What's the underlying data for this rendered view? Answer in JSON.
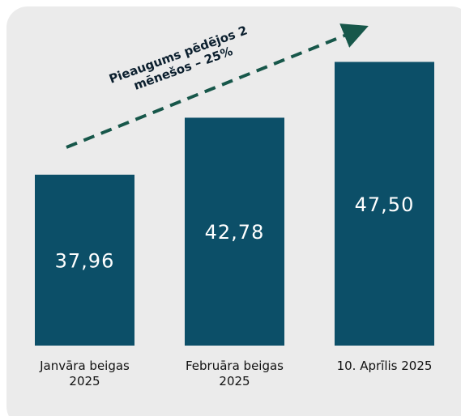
{
  "chart_data": {
    "type": "bar",
    "categories": [
      "Janvāra beigas 2025",
      "Februāra beigas 2025",
      "10. Aprīlis 2025"
    ],
    "values": [
      37.96,
      42.78,
      47.5
    ],
    "value_labels": [
      "37,96",
      "42,78",
      "47,50"
    ],
    "color": "#0c4f68",
    "ylim": [
      23.5,
      50
    ],
    "annotation": "Pieaugums pēdējos 2 mēnešos – 25%"
  }
}
